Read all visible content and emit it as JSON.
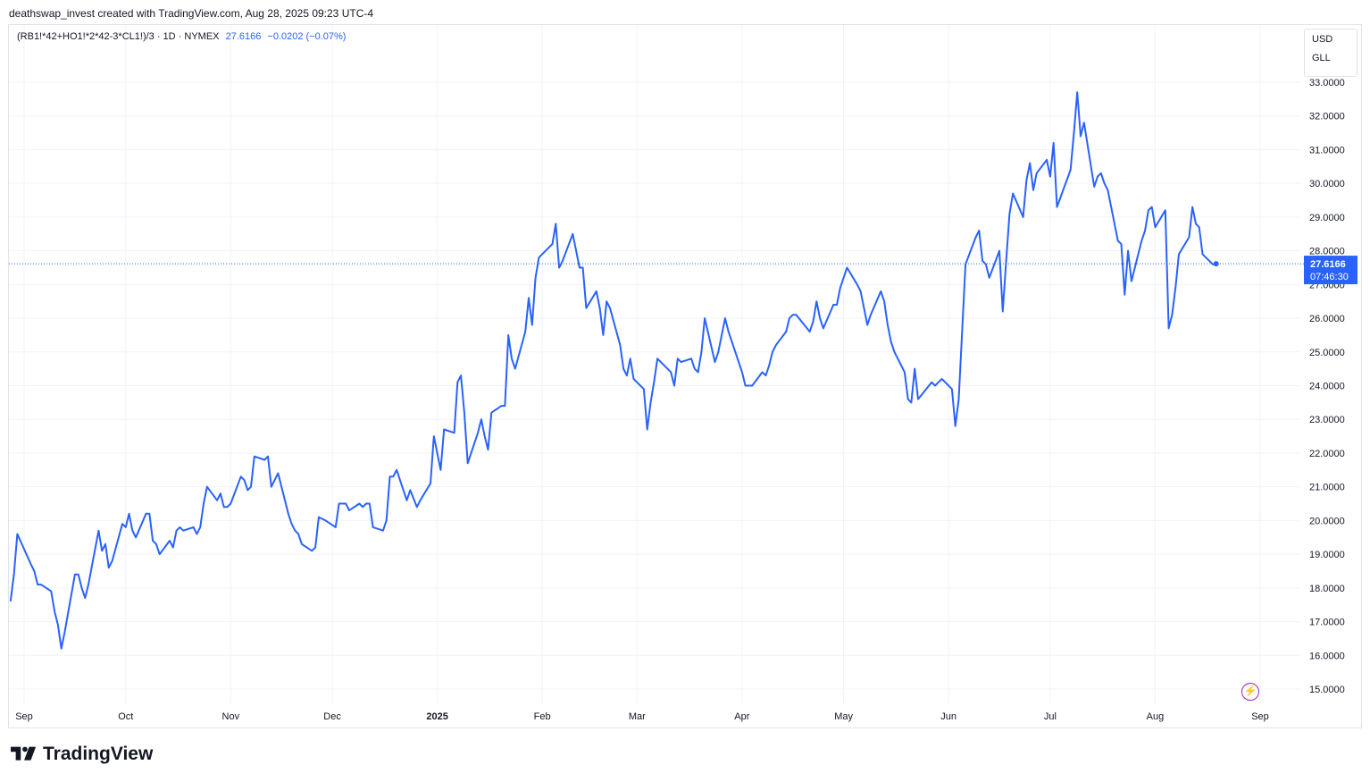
{
  "header": {
    "credit": "deathswap_invest created with TradingView.com, Aug 28, 2025 09:23 UTC-4"
  },
  "legend": {
    "symbol": "(RB1!*42+HO1!*2*42-3*CL1!)/3 · 1D · NYMEX",
    "last_value": "27.6166",
    "change": "−0.0202 (−0.07%)"
  },
  "currency_menu": {
    "items": [
      "USD",
      "GLL"
    ]
  },
  "price_label": {
    "value": "27.6166",
    "countdown": "07:46:30"
  },
  "footer": {
    "brand": "TradingView"
  },
  "colors": {
    "line": "#2962ff",
    "grid": "#f0f3fa",
    "axis_text": "#131722",
    "label_bg": "#2962ff",
    "flash": "#9c27b0"
  },
  "icons": {
    "flash": "lightning-icon",
    "logo": "tradingview-logo-icon"
  },
  "chart_data": {
    "type": "line",
    "ylim": [
      15,
      33
    ],
    "y_ticks": [
      "15.0000",
      "16.0000",
      "17.0000",
      "18.0000",
      "19.0000",
      "20.0000",
      "21.0000",
      "22.0000",
      "23.0000",
      "24.0000",
      "25.0000",
      "26.0000",
      "27.0000",
      "28.0000",
      "29.0000",
      "30.0000",
      "31.0000",
      "32.0000",
      "33.0000"
    ],
    "x_ticks": [
      {
        "label": "Sep",
        "date": "2024-09-01"
      },
      {
        "label": "Oct",
        "date": "2024-10-01"
      },
      {
        "label": "Nov",
        "date": "2024-11-01"
      },
      {
        "label": "Dec",
        "date": "2024-12-01"
      },
      {
        "label": "2025",
        "date": "2025-01-01"
      },
      {
        "label": "Feb",
        "date": "2025-02-01"
      },
      {
        "label": "Mar",
        "date": "2025-03-01"
      },
      {
        "label": "Apr",
        "date": "2025-04-01"
      },
      {
        "label": "May",
        "date": "2025-05-01"
      },
      {
        "label": "Jun",
        "date": "2025-06-01"
      },
      {
        "label": "Jul",
        "date": "2025-07-01"
      },
      {
        "label": "Aug",
        "date": "2025-08-01"
      },
      {
        "label": "Sep",
        "date": "2025-09-01"
      }
    ],
    "last_value": 27.6166,
    "series": [
      {
        "points": [
          [
            "2024-08-28",
            17.6
          ],
          [
            "2024-08-29",
            18.4
          ],
          [
            "2024-08-30",
            19.6
          ],
          [
            "2024-09-03",
            18.7
          ],
          [
            "2024-09-04",
            18.5
          ],
          [
            "2024-09-05",
            18.1
          ],
          [
            "2024-09-06",
            18.1
          ],
          [
            "2024-09-09",
            17.9
          ],
          [
            "2024-09-10",
            17.3
          ],
          [
            "2024-09-11",
            16.9
          ],
          [
            "2024-09-12",
            16.2
          ],
          [
            "2024-09-13",
            16.7
          ],
          [
            "2024-09-16",
            18.4
          ],
          [
            "2024-09-17",
            18.4
          ],
          [
            "2024-09-18",
            18.0
          ],
          [
            "2024-09-19",
            17.7
          ],
          [
            "2024-09-20",
            18.1
          ],
          [
            "2024-09-23",
            19.7
          ],
          [
            "2024-09-24",
            19.1
          ],
          [
            "2024-09-25",
            19.3
          ],
          [
            "2024-09-26",
            18.6
          ],
          [
            "2024-09-27",
            18.8
          ],
          [
            "2024-09-30",
            19.9
          ],
          [
            "2024-10-01",
            19.8
          ],
          [
            "2024-10-02",
            20.2
          ],
          [
            "2024-10-03",
            19.7
          ],
          [
            "2024-10-04",
            19.5
          ],
          [
            "2024-10-07",
            20.2
          ],
          [
            "2024-10-08",
            20.2
          ],
          [
            "2024-10-09",
            19.4
          ],
          [
            "2024-10-10",
            19.3
          ],
          [
            "2024-10-11",
            19.0
          ],
          [
            "2024-10-14",
            19.4
          ],
          [
            "2024-10-15",
            19.2
          ],
          [
            "2024-10-16",
            19.7
          ],
          [
            "2024-10-17",
            19.8
          ],
          [
            "2024-10-18",
            19.7
          ],
          [
            "2024-10-21",
            19.8
          ],
          [
            "2024-10-22",
            19.6
          ],
          [
            "2024-10-23",
            19.8
          ],
          [
            "2024-10-24",
            20.5
          ],
          [
            "2024-10-25",
            21.0
          ],
          [
            "2024-10-28",
            20.6
          ],
          [
            "2024-10-29",
            20.8
          ],
          [
            "2024-10-30",
            20.4
          ],
          [
            "2024-10-31",
            20.4
          ],
          [
            "2024-11-01",
            20.5
          ],
          [
            "2024-11-04",
            21.3
          ],
          [
            "2024-11-05",
            21.2
          ],
          [
            "2024-11-06",
            20.9
          ],
          [
            "2024-11-07",
            21.0
          ],
          [
            "2024-11-08",
            21.9
          ],
          [
            "2024-11-11",
            21.8
          ],
          [
            "2024-11-12",
            21.9
          ],
          [
            "2024-11-13",
            21.0
          ],
          [
            "2024-11-14",
            21.2
          ],
          [
            "2024-11-15",
            21.4
          ],
          [
            "2024-11-18",
            20.2
          ],
          [
            "2024-11-19",
            19.9
          ],
          [
            "2024-11-20",
            19.7
          ],
          [
            "2024-11-21",
            19.6
          ],
          [
            "2024-11-22",
            19.3
          ],
          [
            "2024-11-25",
            19.1
          ],
          [
            "2024-11-26",
            19.2
          ],
          [
            "2024-11-27",
            20.1
          ],
          [
            "2024-11-29",
            20.0
          ],
          [
            "2024-12-02",
            19.8
          ],
          [
            "2024-12-03",
            20.5
          ],
          [
            "2024-12-04",
            20.5
          ],
          [
            "2024-12-05",
            20.5
          ],
          [
            "2024-12-06",
            20.3
          ],
          [
            "2024-12-09",
            20.5
          ],
          [
            "2024-12-10",
            20.4
          ],
          [
            "2024-12-11",
            20.5
          ],
          [
            "2024-12-12",
            20.5
          ],
          [
            "2024-12-13",
            19.8
          ],
          [
            "2024-12-16",
            19.7
          ],
          [
            "2024-12-17",
            20.0
          ],
          [
            "2024-12-18",
            21.3
          ],
          [
            "2024-12-19",
            21.3
          ],
          [
            "2024-12-20",
            21.5
          ],
          [
            "2024-12-23",
            20.6
          ],
          [
            "2024-12-24",
            20.9
          ],
          [
            "2024-12-26",
            20.4
          ],
          [
            "2024-12-27",
            20.6
          ],
          [
            "2024-12-30",
            21.1
          ],
          [
            "2024-12-31",
            22.5
          ],
          [
            "2025-01-02",
            21.5
          ],
          [
            "2025-01-03",
            22.7
          ],
          [
            "2025-01-06",
            22.6
          ],
          [
            "2025-01-07",
            24.1
          ],
          [
            "2025-01-08",
            24.3
          ],
          [
            "2025-01-09",
            23.2
          ],
          [
            "2025-01-10",
            21.7
          ],
          [
            "2025-01-13",
            22.6
          ],
          [
            "2025-01-14",
            23.0
          ],
          [
            "2025-01-15",
            22.5
          ],
          [
            "2025-01-16",
            22.1
          ],
          [
            "2025-01-17",
            23.2
          ],
          [
            "2025-01-20",
            23.4
          ],
          [
            "2025-01-21",
            23.4
          ],
          [
            "2025-01-22",
            25.5
          ],
          [
            "2025-01-23",
            24.8
          ],
          [
            "2025-01-24",
            24.5
          ],
          [
            "2025-01-27",
            25.6
          ],
          [
            "2025-01-28",
            26.6
          ],
          [
            "2025-01-29",
            25.8
          ],
          [
            "2025-01-30",
            27.2
          ],
          [
            "2025-01-31",
            27.8
          ],
          [
            "2025-02-03",
            28.1
          ],
          [
            "2025-02-04",
            28.2
          ],
          [
            "2025-02-05",
            28.8
          ],
          [
            "2025-02-06",
            27.5
          ],
          [
            "2025-02-07",
            27.7
          ],
          [
            "2025-02-10",
            28.5
          ],
          [
            "2025-02-11",
            28.0
          ],
          [
            "2025-02-12",
            27.5
          ],
          [
            "2025-02-13",
            27.5
          ],
          [
            "2025-02-14",
            26.3
          ],
          [
            "2025-02-17",
            26.8
          ],
          [
            "2025-02-18",
            26.3
          ],
          [
            "2025-02-19",
            25.5
          ],
          [
            "2025-02-20",
            26.5
          ],
          [
            "2025-02-21",
            26.3
          ],
          [
            "2025-02-24",
            25.2
          ],
          [
            "2025-02-25",
            24.5
          ],
          [
            "2025-02-26",
            24.3
          ],
          [
            "2025-02-27",
            24.8
          ],
          [
            "2025-02-28",
            24.2
          ],
          [
            "2025-03-03",
            23.9
          ],
          [
            "2025-03-04",
            22.7
          ],
          [
            "2025-03-05",
            23.5
          ],
          [
            "2025-03-06",
            24.1
          ],
          [
            "2025-03-07",
            24.8
          ],
          [
            "2025-03-10",
            24.5
          ],
          [
            "2025-03-11",
            24.4
          ],
          [
            "2025-03-12",
            24.0
          ],
          [
            "2025-03-13",
            24.8
          ],
          [
            "2025-03-14",
            24.7
          ],
          [
            "2025-03-17",
            24.8
          ],
          [
            "2025-03-18",
            24.5
          ],
          [
            "2025-03-19",
            24.4
          ],
          [
            "2025-03-20",
            25.0
          ],
          [
            "2025-03-21",
            26.0
          ],
          [
            "2025-03-24",
            24.7
          ],
          [
            "2025-03-25",
            25.0
          ],
          [
            "2025-03-26",
            25.5
          ],
          [
            "2025-03-27",
            26.0
          ],
          [
            "2025-03-28",
            25.6
          ],
          [
            "2025-03-31",
            24.7
          ],
          [
            "2025-04-01",
            24.4
          ],
          [
            "2025-04-02",
            24.0
          ],
          [
            "2025-04-03",
            24.0
          ],
          [
            "2025-04-04",
            24.0
          ],
          [
            "2025-04-07",
            24.4
          ],
          [
            "2025-04-08",
            24.3
          ],
          [
            "2025-04-09",
            24.6
          ],
          [
            "2025-04-10",
            25.0
          ],
          [
            "2025-04-11",
            25.2
          ],
          [
            "2025-04-14",
            25.6
          ],
          [
            "2025-04-15",
            26.0
          ],
          [
            "2025-04-16",
            26.1
          ],
          [
            "2025-04-17",
            26.1
          ],
          [
            "2025-04-21",
            25.6
          ],
          [
            "2025-04-22",
            25.9
          ],
          [
            "2025-04-23",
            26.5
          ],
          [
            "2025-04-24",
            26.0
          ],
          [
            "2025-04-25",
            25.7
          ],
          [
            "2025-04-28",
            26.4
          ],
          [
            "2025-04-29",
            26.4
          ],
          [
            "2025-04-30",
            26.9
          ],
          [
            "2025-05-01",
            27.2
          ],
          [
            "2025-05-02",
            27.5
          ],
          [
            "2025-05-05",
            27.0
          ],
          [
            "2025-05-06",
            26.8
          ],
          [
            "2025-05-07",
            26.3
          ],
          [
            "2025-05-08",
            25.8
          ],
          [
            "2025-05-09",
            26.1
          ],
          [
            "2025-05-12",
            26.8
          ],
          [
            "2025-05-13",
            26.5
          ],
          [
            "2025-05-14",
            25.8
          ],
          [
            "2025-05-15",
            25.3
          ],
          [
            "2025-05-16",
            25.0
          ],
          [
            "2025-05-19",
            24.4
          ],
          [
            "2025-05-20",
            23.6
          ],
          [
            "2025-05-21",
            23.5
          ],
          [
            "2025-05-22",
            24.5
          ],
          [
            "2025-05-23",
            23.6
          ],
          [
            "2025-05-27",
            24.1
          ],
          [
            "2025-05-28",
            24.0
          ],
          [
            "2025-05-29",
            24.1
          ],
          [
            "2025-05-30",
            24.2
          ],
          [
            "2025-06-02",
            23.9
          ],
          [
            "2025-06-03",
            22.8
          ],
          [
            "2025-06-04",
            23.6
          ],
          [
            "2025-06-05",
            25.6
          ],
          [
            "2025-06-06",
            27.6
          ],
          [
            "2025-06-09",
            28.4
          ],
          [
            "2025-06-10",
            28.6
          ],
          [
            "2025-06-11",
            27.7
          ],
          [
            "2025-06-12",
            27.6
          ],
          [
            "2025-06-13",
            27.2
          ],
          [
            "2025-06-16",
            28.0
          ],
          [
            "2025-06-17",
            26.2
          ],
          [
            "2025-06-18",
            27.7
          ],
          [
            "2025-06-19",
            29.1
          ],
          [
            "2025-06-20",
            29.7
          ],
          [
            "2025-06-23",
            29.0
          ],
          [
            "2025-06-24",
            30.1
          ],
          [
            "2025-06-25",
            30.6
          ],
          [
            "2025-06-26",
            29.8
          ],
          [
            "2025-06-27",
            30.3
          ],
          [
            "2025-06-30",
            30.7
          ],
          [
            "2025-07-01",
            30.2
          ],
          [
            "2025-07-02",
            31.2
          ],
          [
            "2025-07-03",
            29.3
          ],
          [
            "2025-07-07",
            30.4
          ],
          [
            "2025-07-08",
            31.5
          ],
          [
            "2025-07-09",
            32.7
          ],
          [
            "2025-07-10",
            31.4
          ],
          [
            "2025-07-11",
            31.8
          ],
          [
            "2025-07-14",
            29.9
          ],
          [
            "2025-07-15",
            30.2
          ],
          [
            "2025-07-16",
            30.3
          ],
          [
            "2025-07-17",
            30.0
          ],
          [
            "2025-07-18",
            29.8
          ],
          [
            "2025-07-21",
            28.3
          ],
          [
            "2025-07-22",
            28.2
          ],
          [
            "2025-07-23",
            26.7
          ],
          [
            "2025-07-24",
            28.0
          ],
          [
            "2025-07-25",
            27.1
          ],
          [
            "2025-07-28",
            28.3
          ],
          [
            "2025-07-29",
            28.6
          ],
          [
            "2025-07-30",
            29.2
          ],
          [
            "2025-07-31",
            29.3
          ],
          [
            "2025-08-01",
            28.7
          ],
          [
            "2025-08-04",
            29.2
          ],
          [
            "2025-08-05",
            25.7
          ],
          [
            "2025-08-06",
            26.1
          ],
          [
            "2025-08-07",
            26.9
          ],
          [
            "2025-08-08",
            27.9
          ],
          [
            "2025-08-11",
            28.4
          ],
          [
            "2025-08-12",
            29.3
          ],
          [
            "2025-08-13",
            28.8
          ],
          [
            "2025-08-14",
            28.7
          ],
          [
            "2025-08-15",
            27.9
          ],
          [
            "2025-08-18",
            27.6
          ],
          [
            "2025-08-19",
            27.6
          ]
        ]
      }
    ]
  }
}
